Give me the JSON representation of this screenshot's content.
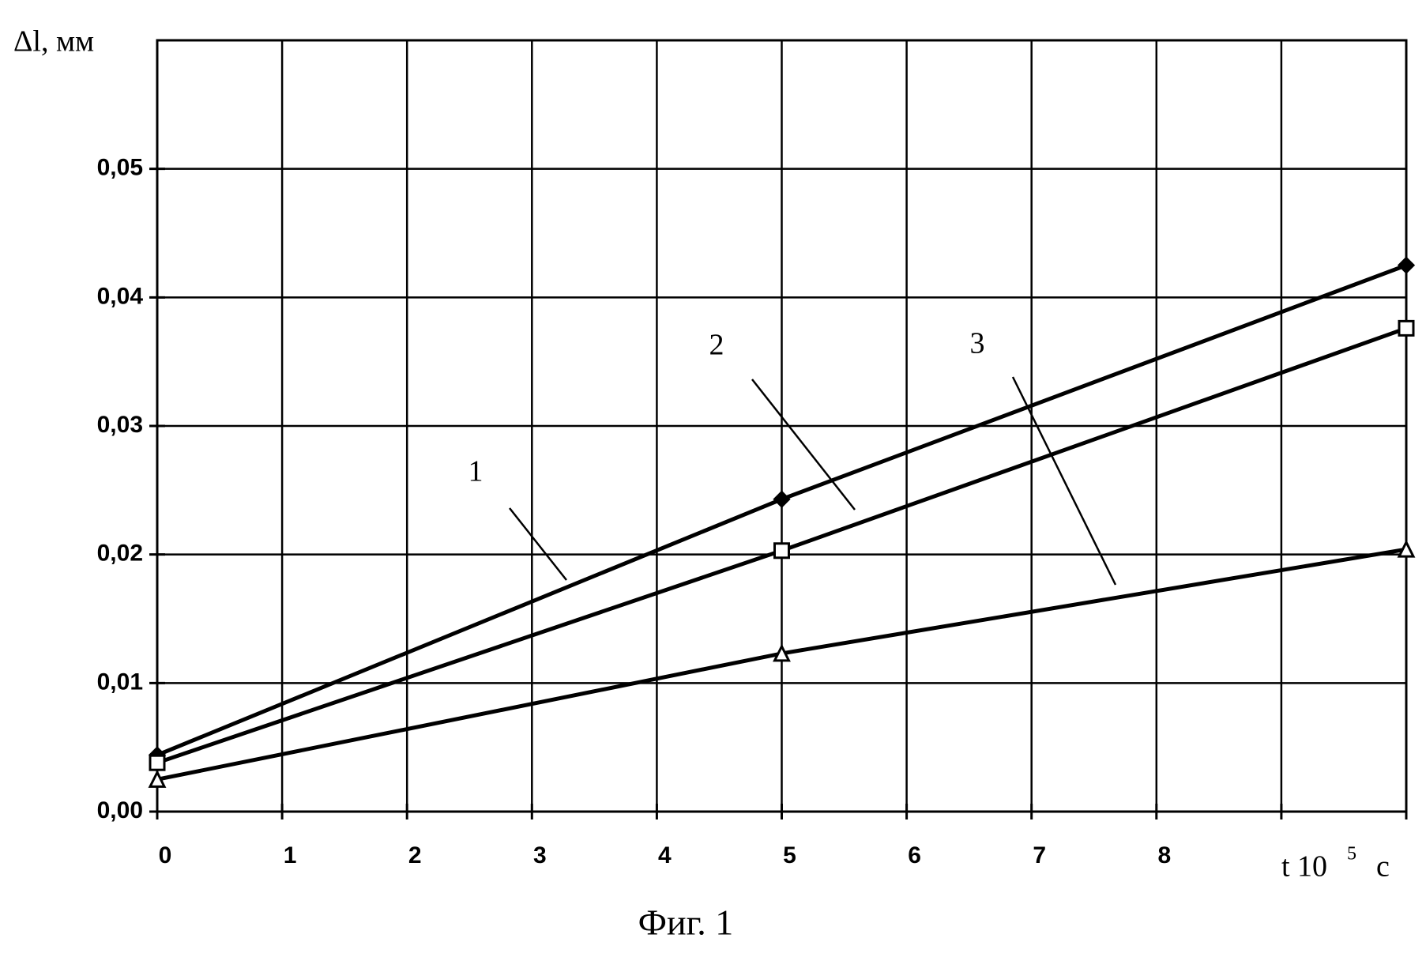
{
  "chart_data": {
    "type": "line",
    "ylabel": "Δl, мм",
    "xlabel": "t  10",
    "xlabel_exponent": "5",
    "xlabel_unit": "с",
    "caption": "Фиг. 1",
    "x": [
      0,
      5,
      10
    ],
    "series": [
      {
        "name": "1",
        "color": "#000000",
        "marker": "diamond",
        "values": [
          0.0044,
          0.0243,
          0.0425
        ]
      },
      {
        "name": "2",
        "color": "#000000",
        "marker": "square",
        "values": [
          0.0038,
          0.0203,
          0.0376
        ]
      },
      {
        "name": "3",
        "color": "#000000",
        "marker": "triangle",
        "values": [
          0.0025,
          0.0123,
          0.0204
        ]
      }
    ],
    "xlim": [
      0,
      10
    ],
    "xticks": [
      0,
      1,
      2,
      3,
      4,
      5,
      6,
      7,
      8,
      {
        "value": 9,
        "label": null
      },
      {
        "value": 10,
        "label": null
      }
    ],
    "ylim": [
      0,
      0.06
    ],
    "yticks": [
      {
        "value": 0,
        "label": "0,00"
      },
      {
        "value": 0.01,
        "label": "0,01"
      },
      {
        "value": 0.02,
        "label": "0,02"
      },
      {
        "value": 0.03,
        "label": "0,03"
      },
      {
        "value": 0.04,
        "label": "0,04"
      },
      {
        "value": 0.05,
        "label": "0,05"
      }
    ],
    "grid": true
  }
}
